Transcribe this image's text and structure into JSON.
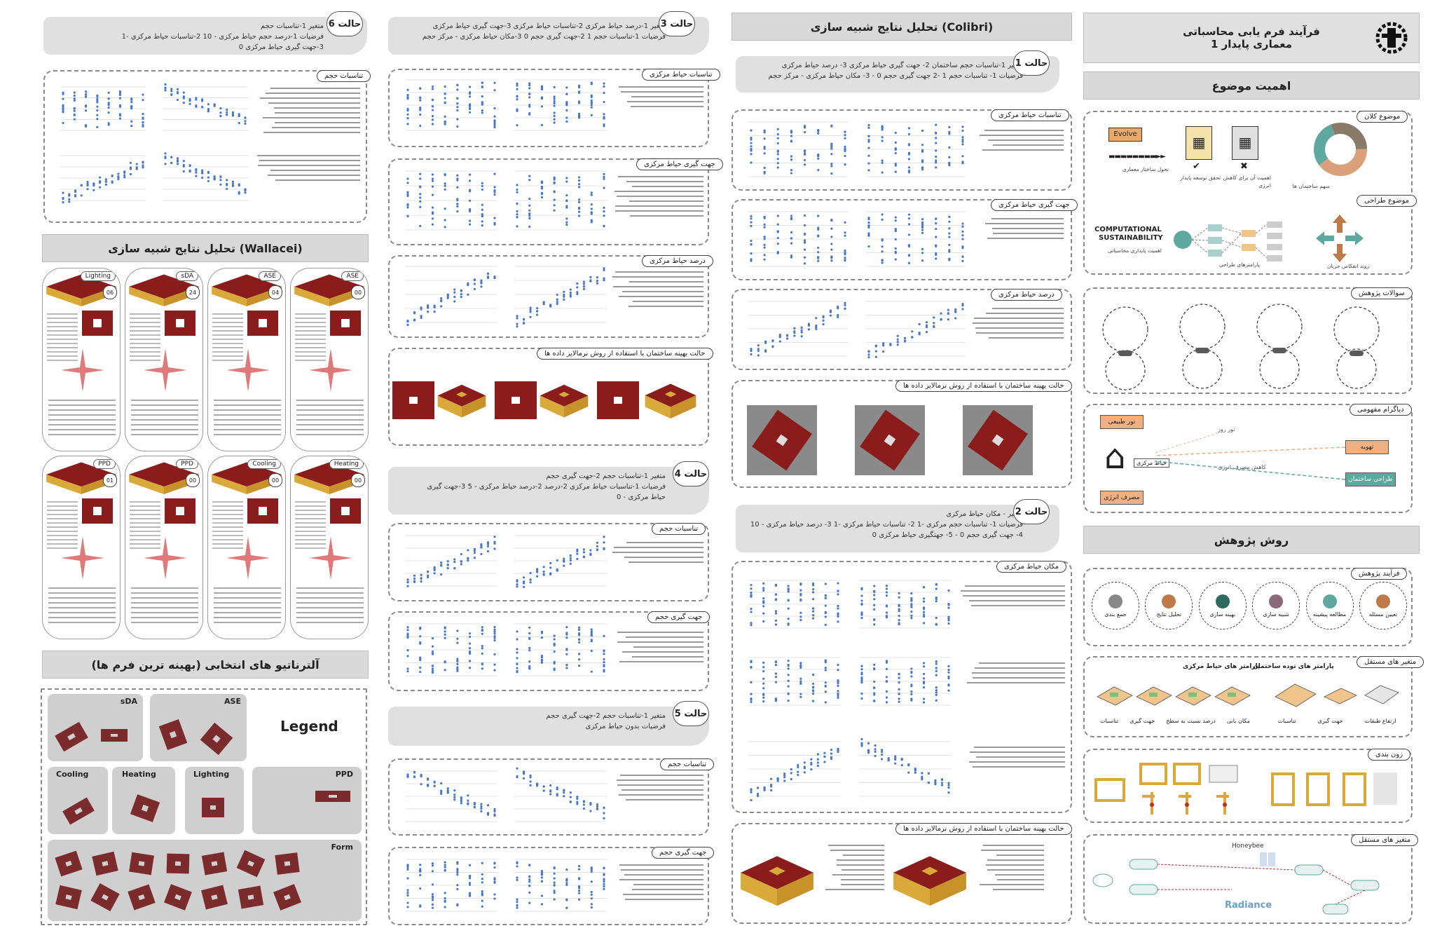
{
  "header": {
    "title_line1": "فرآیند فرم یابی محاسباتی",
    "title_line2": "معماری پایدار 1",
    "logo": "university-logo-icon"
  },
  "sections": {
    "importance": "اهمیت موضوع",
    "method": "روش پژوهش",
    "colibri": "تحلیل نتایج شبیه سازی (Colibri)",
    "wallacei": "تحلیل نتایج شبیه سازی (Wallacei)",
    "alternatives": "آلترناتیو های انتخابی (بهینه ترین فرم ها)"
  },
  "importance_panel": {
    "main_topic": "موضوع کلان",
    "design_topic": "موضوع طراحی",
    "evolve": "Evolve",
    "evolve_caption": "تحول ساختار معماری",
    "compare_caption_ok": "تحقق توسعه پایدار",
    "compare_caption_no": "اهمیت آن برای کاهش انرژی",
    "donut_caption": "سهم ساختمان ها",
    "comp_sust_line1": "COMPUTATIONAL",
    "comp_sust_line2": "SUSTAINABILITY",
    "comp_sust_caption": "اهمیت پایداری محاسباتی",
    "network_caption": "پارامترهای طراحی",
    "arrows_caption": "روند انعکاس جریان"
  },
  "questions_panel": {
    "title": "سوالات پژوهش"
  },
  "diagram_panel": {
    "title": "دیاگرام مفهومی",
    "left_top": "نور طبیعی",
    "left_bottom": "مصرف انرژی",
    "center": "حیاط مرکزی",
    "right_top": "نور روز",
    "right_mid": "تهویه",
    "right_bottom": "طراحی ساختمان",
    "dashed_label": "کاهش مصرف انرژی"
  },
  "method_panel": {
    "process": "فرآیند پژوهش",
    "variables": "متغیر های مستقل",
    "courtyard_params": "پارامتر های حیاط مرکزی",
    "mass_params": "پارامتر های توده ساختمان",
    "zoning": "زون بندی",
    "tools": "متغیر های مستقل",
    "tool_a": "Honeybee",
    "tool_b": "Radiance",
    "process_steps": [
      "تعیین مسئله",
      "مطالعه پیشینه",
      "شبیه سازی",
      "بهینه سازی",
      "تحلیل نتایج",
      "جمع بندی"
    ],
    "mass_labels": [
      "ارتفاع طبقات",
      "جهت گیری",
      "تناسبات"
    ],
    "court_labels": [
      "مکان یابی",
      "درصد نسبت به سطح",
      "جهت گیری",
      "تناسبات"
    ]
  },
  "colibri": {
    "case1": {
      "tag": "حالت 1",
      "line1": "متغیر 1-تناسبات حجم ساختمان 2- جهت گیری حیاط مرکزی 3- درصد حیاط مرکزی",
      "line2": "فرضیات 1- تناسبات حجم 1 -2 جهت گیری حجم 0 - 3- مکان حیاط مرکزی - مرکز حجم",
      "sub1": "تناسبات حیاط مرکزی",
      "sub2": "جهت گیری حیاط مرکزی",
      "sub3": "درصد حیاط مرکزی"
    },
    "optimal": "حالت بهینه ساختمان با استفاده از روش نرمالایز داده ها",
    "case2": {
      "tag": "حالت 2",
      "line1": "متغیر - مکان حیاط مرکزی",
      "line2": "فرضیات 1- تناسبات حجم مرکزی -1 2- تناسبات حیاط مرکزی -1 3- درصد حیاط مرکزی - 10",
      "line3": "4- جهت گیری حجم 0 - 5- جهتگیری حیاط مرکزی 0",
      "sub1": "مکان حیاط مرکزی"
    },
    "optimal2": "حالت بهینه ساختمان با استفاده از روش نرمالایز داده ها"
  },
  "middle": {
    "case3": {
      "tag": "حالت 3",
      "line1": "متغیر 1-درصد حیاط مرکزی 2-تناسبات حیاط مرکزی 3-جهت گیری حیاط مرکزی",
      "line2": "فرضیات 1-تناسبات حجم 1 2-جهت گیری حجم 0 3-مکان حیاط مرکزی - مرکز حجم",
      "sub1": "تناسبات حیاط مرکزی",
      "sub2": "جهت گیری حیاط مرکزی",
      "sub3": "درصد حیاط مرکزی",
      "optimal": "حالت بهینه ساختمان با استفاده از روش نرمالایز داده ها"
    },
    "case4": {
      "tag": "حالت 4",
      "line1": "متغیر 1-تناسبات حجم 2-جهت گیری حجم",
      "line2": "فرضیات 1-تناسبات حیاط مرکزی 2-درصد 2-درصد حیاط مرکزی - 5 3-جهت گیری",
      "line3": "حیاط مرکزی - 0",
      "sub1": "تناسبات حجم",
      "sub2": "جهت گیری حجم"
    },
    "case5": {
      "tag": "حالت 5",
      "line1": "متغیر 1-تناسبات حجم 2-جهت گیری حجم",
      "line2": "فرضیات بدون حیاط مرکزی",
      "sub1": "تناسبات حجم",
      "sub2": "جهت گیری حجم"
    }
  },
  "left": {
    "case6": {
      "tag": "حالت 6",
      "line1": "متغیر 1-تناسبات حجم",
      "line2": "فرضیات 1-درصد حجم حیاط مرکزی - 10 2-تناسبات حیاط مرکزی -1",
      "line3": "3-جهت گیری حیاط مرکزی 0",
      "sub1": "تناسبات حجم"
    },
    "wallacei_cards": [
      {
        "label": "Lighting",
        "num": "06"
      },
      {
        "label": "sDA",
        "num": "24"
      },
      {
        "label": "ASE",
        "num": "04"
      },
      {
        "label": "ASE",
        "num": "00"
      },
      {
        "label": "PPD",
        "num": "01"
      },
      {
        "label": "PPD",
        "num": "00"
      },
      {
        "label": "Cooling",
        "num": "00"
      },
      {
        "label": "Heating",
        "num": "00"
      }
    ],
    "legend": {
      "title": "Legend",
      "sda": "sDA",
      "ase": "ASE",
      "cooling": "Cooling",
      "heating": "Heating",
      "lighting": "Lighting",
      "ppd": "PPD",
      "form": "Form"
    }
  },
  "colors": {
    "roof": "#8b1c1c",
    "facade": "#d9a93a",
    "bar": "#d9d9d9",
    "scatter": "#4a78c9",
    "star": "#e07a7a"
  }
}
